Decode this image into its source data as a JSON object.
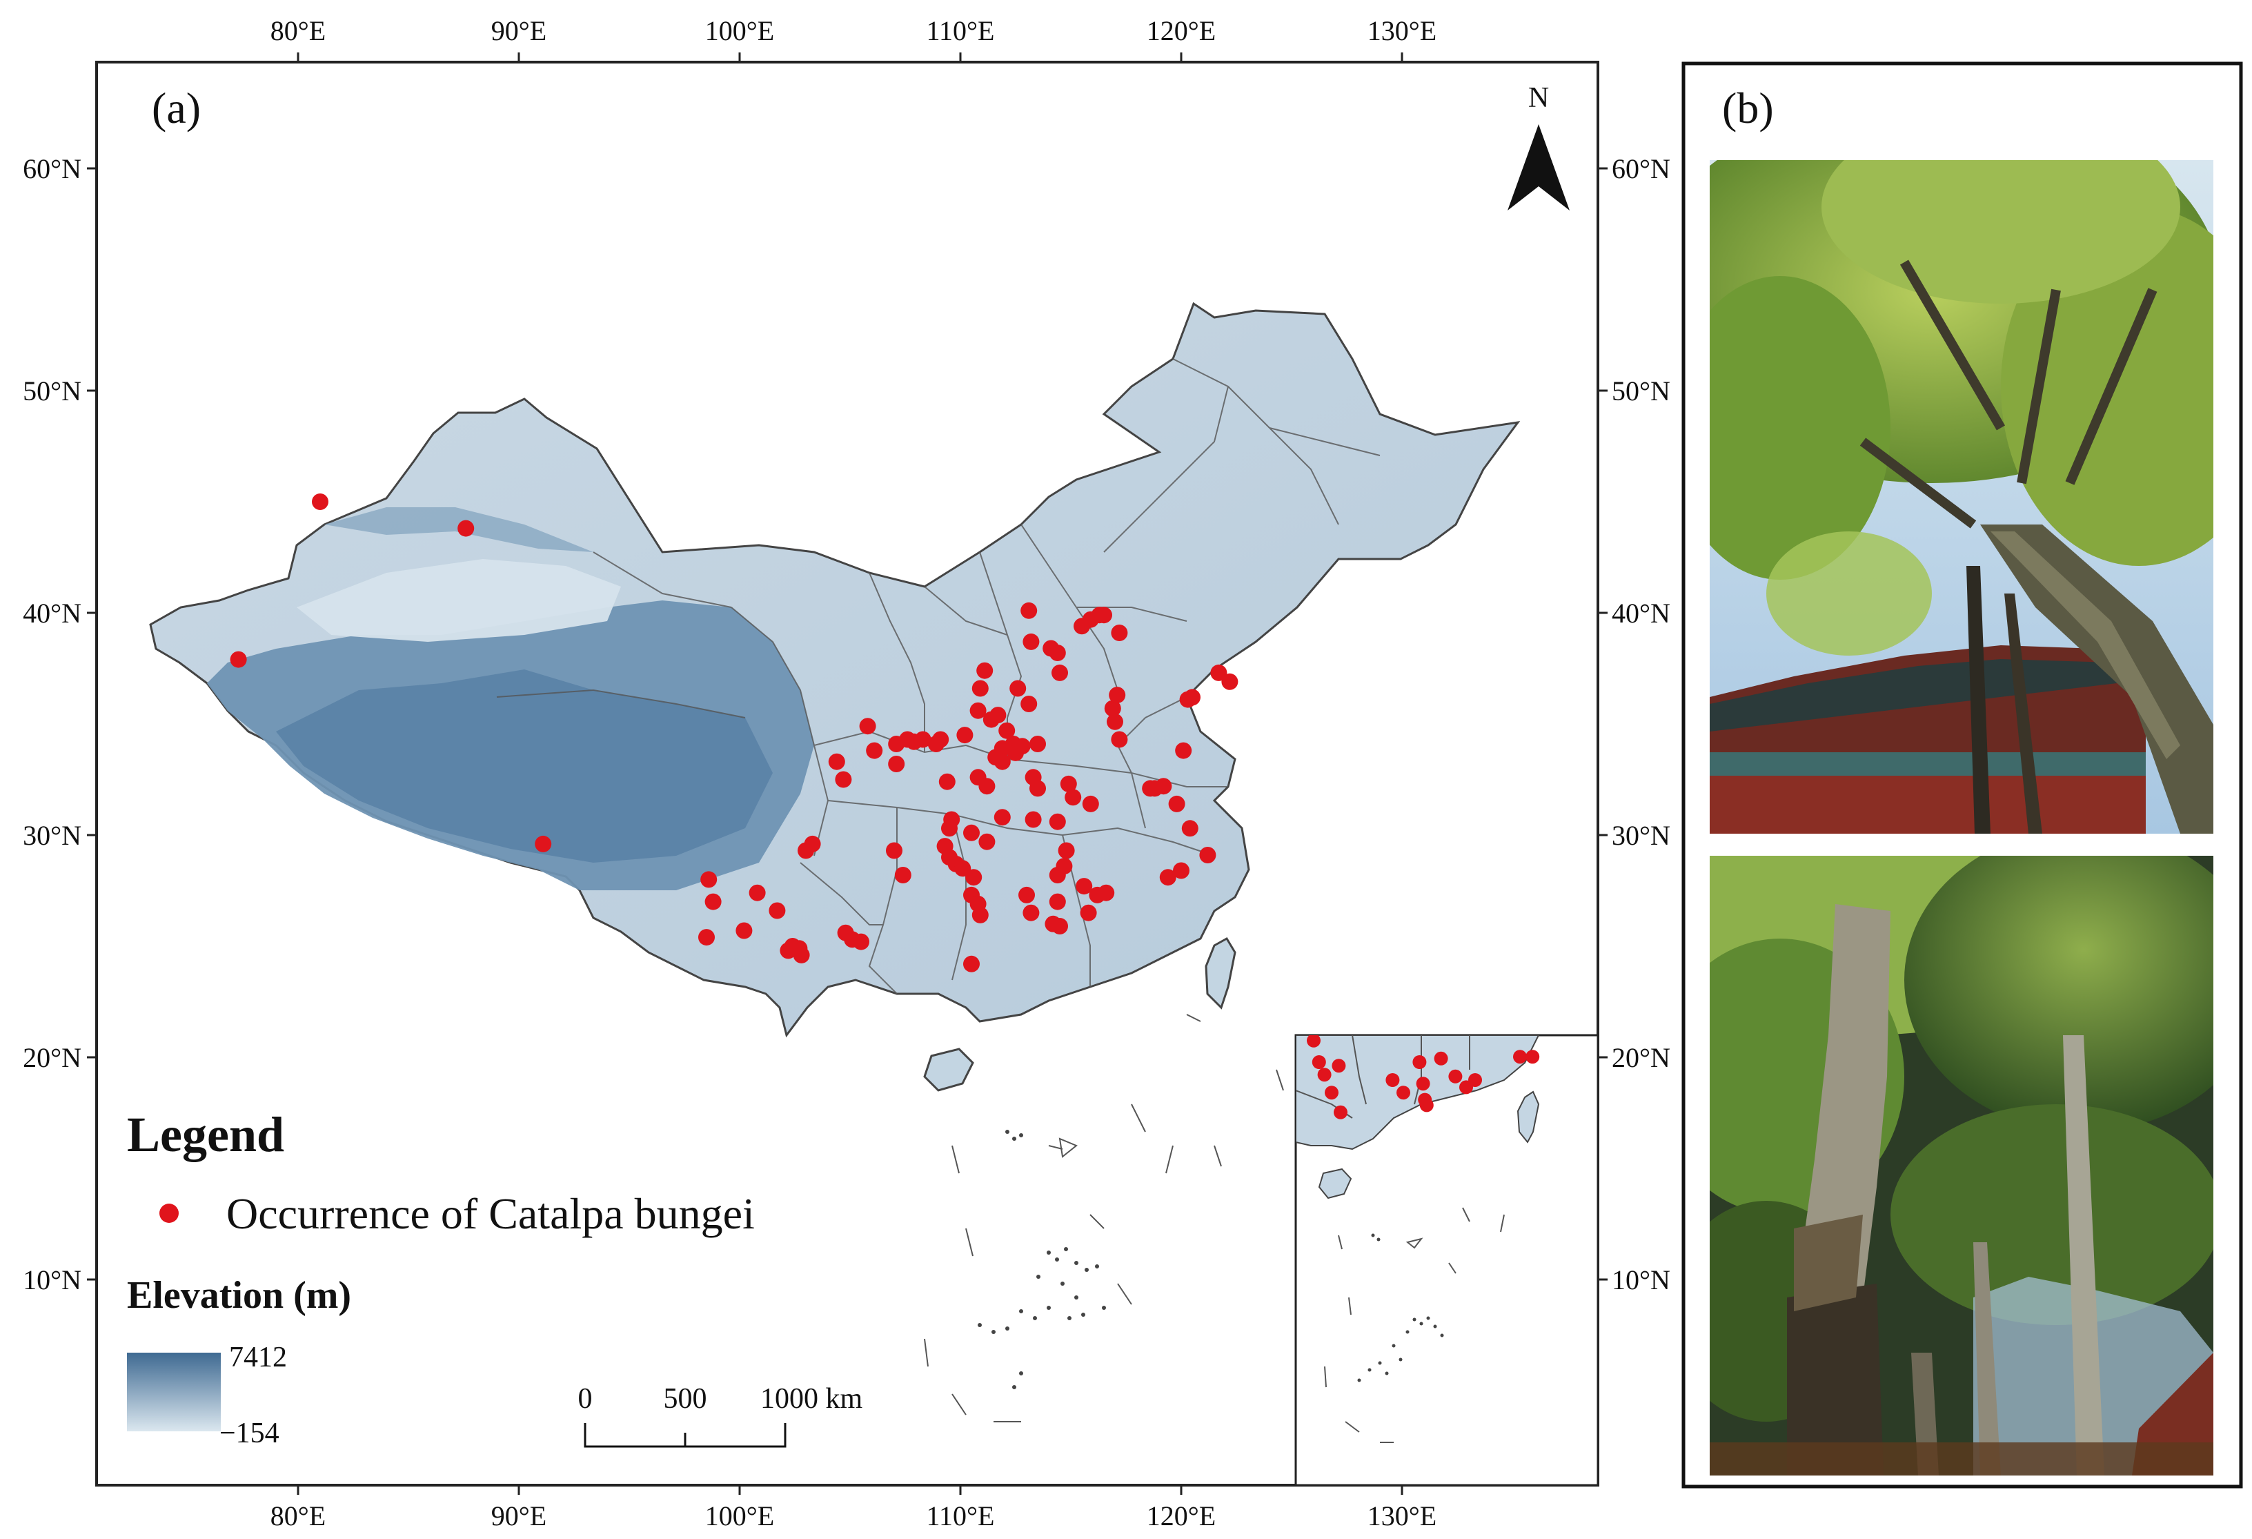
{
  "panel_a": {
    "label": "(a)",
    "north_label": "N",
    "lon_ticks": [
      "80°E",
      "90°E",
      "100°E",
      "110°E",
      "120°E",
      "130°E"
    ],
    "lat_ticks": [
      "60°N",
      "50°N",
      "40°N",
      "30°N",
      "20°N",
      "10°N"
    ],
    "legend": {
      "title": "Legend",
      "occurrence_label": "Occurrence of Catalpa bungei",
      "occurrence_color": "#e0141c",
      "elevation_title": "Elevation (m)",
      "elevation_max": "7412",
      "elevation_min": "−154",
      "ramp_high_color": "#3f6a92",
      "ramp_low_color": "#dbe7ef"
    },
    "scale_bar": {
      "labels": [
        "0",
        "500",
        "1000 km"
      ]
    },
    "occurrences": [
      {
        "lon": 81.0,
        "lat": 45.0
      },
      {
        "lon": 87.6,
        "lat": 43.8
      },
      {
        "lon": 77.3,
        "lat": 37.9
      },
      {
        "lon": 91.1,
        "lat": 29.6
      },
      {
        "lon": 113.1,
        "lat": 40.1
      },
      {
        "lon": 113.2,
        "lat": 38.7
      },
      {
        "lon": 114.1,
        "lat": 38.4
      },
      {
        "lon": 114.4,
        "lat": 38.2
      },
      {
        "lon": 115.5,
        "lat": 39.4
      },
      {
        "lon": 115.9,
        "lat": 39.7
      },
      {
        "lon": 116.3,
        "lat": 39.9
      },
      {
        "lon": 116.5,
        "lat": 39.9
      },
      {
        "lon": 117.2,
        "lat": 39.1
      },
      {
        "lon": 114.5,
        "lat": 37.3
      },
      {
        "lon": 111.1,
        "lat": 37.4
      },
      {
        "lon": 110.9,
        "lat": 36.6
      },
      {
        "lon": 112.6,
        "lat": 36.6
      },
      {
        "lon": 113.1,
        "lat": 35.9
      },
      {
        "lon": 110.8,
        "lat": 35.6
      },
      {
        "lon": 111.4,
        "lat": 35.2
      },
      {
        "lon": 111.7,
        "lat": 35.4
      },
      {
        "lon": 112.1,
        "lat": 34.7
      },
      {
        "lon": 112.4,
        "lat": 34.1
      },
      {
        "lon": 111.9,
        "lat": 33.9
      },
      {
        "lon": 112.5,
        "lat": 33.7
      },
      {
        "lon": 111.6,
        "lat": 33.5
      },
      {
        "lon": 111.9,
        "lat": 33.3
      },
      {
        "lon": 112.8,
        "lat": 34.0
      },
      {
        "lon": 113.5,
        "lat": 34.1
      },
      {
        "lon": 110.2,
        "lat": 34.5
      },
      {
        "lon": 109.1,
        "lat": 34.3
      },
      {
        "lon": 108.9,
        "lat": 34.1
      },
      {
        "lon": 108.3,
        "lat": 34.3
      },
      {
        "lon": 107.9,
        "lat": 34.2
      },
      {
        "lon": 107.1,
        "lat": 34.1
      },
      {
        "lon": 107.6,
        "lat": 34.3
      },
      {
        "lon": 105.8,
        "lat": 34.9
      },
      {
        "lon": 106.1,
        "lat": 33.8
      },
      {
        "lon": 104.4,
        "lat": 33.3
      },
      {
        "lon": 104.7,
        "lat": 32.5
      },
      {
        "lon": 107.1,
        "lat": 33.2
      },
      {
        "lon": 109.4,
        "lat": 32.4
      },
      {
        "lon": 110.8,
        "lat": 32.6
      },
      {
        "lon": 111.2,
        "lat": 32.2
      },
      {
        "lon": 113.3,
        "lat": 32.6
      },
      {
        "lon": 113.5,
        "lat": 32.1
      },
      {
        "lon": 114.9,
        "lat": 32.3
      },
      {
        "lon": 115.1,
        "lat": 31.7
      },
      {
        "lon": 115.9,
        "lat": 31.4
      },
      {
        "lon": 116.9,
        "lat": 35.7
      },
      {
        "lon": 117.1,
        "lat": 36.3
      },
      {
        "lon": 117.0,
        "lat": 35.1
      },
      {
        "lon": 117.2,
        "lat": 34.3
      },
      {
        "lon": 118.6,
        "lat": 32.1
      },
      {
        "lon": 118.8,
        "lat": 32.1
      },
      {
        "lon": 119.2,
        "lat": 32.2
      },
      {
        "lon": 120.1,
        "lat": 33.8
      },
      {
        "lon": 119.8,
        "lat": 31.4
      },
      {
        "lon": 120.4,
        "lat": 30.3
      },
      {
        "lon": 121.2,
        "lat": 29.1
      },
      {
        "lon": 120.0,
        "lat": 28.4
      },
      {
        "lon": 119.4,
        "lat": 28.1
      },
      {
        "lon": 120.3,
        "lat": 36.1
      },
      {
        "lon": 120.5,
        "lat": 36.2
      },
      {
        "lon": 121.7,
        "lat": 37.3
      },
      {
        "lon": 122.2,
        "lat": 36.9
      },
      {
        "lon": 114.4,
        "lat": 30.6
      },
      {
        "lon": 113.3,
        "lat": 30.7
      },
      {
        "lon": 111.9,
        "lat": 30.8
      },
      {
        "lon": 111.2,
        "lat": 29.7
      },
      {
        "lon": 110.5,
        "lat": 30.1
      },
      {
        "lon": 109.5,
        "lat": 30.3
      },
      {
        "lon": 109.6,
        "lat": 30.7
      },
      {
        "lon": 109.3,
        "lat": 29.5
      },
      {
        "lon": 109.5,
        "lat": 29.0
      },
      {
        "lon": 109.8,
        "lat": 28.7
      },
      {
        "lon": 110.1,
        "lat": 28.5
      },
      {
        "lon": 110.6,
        "lat": 28.1
      },
      {
        "lon": 110.5,
        "lat": 27.3
      },
      {
        "lon": 110.8,
        "lat": 26.9
      },
      {
        "lon": 110.9,
        "lat": 26.4
      },
      {
        "lon": 113.0,
        "lat": 27.3
      },
      {
        "lon": 113.2,
        "lat": 26.5
      },
      {
        "lon": 114.4,
        "lat": 28.2
      },
      {
        "lon": 114.7,
        "lat": 28.6
      },
      {
        "lon": 114.8,
        "lat": 29.3
      },
      {
        "lon": 115.6,
        "lat": 27.7
      },
      {
        "lon": 116.2,
        "lat": 27.3
      },
      {
        "lon": 116.6,
        "lat": 27.4
      },
      {
        "lon": 114.4,
        "lat": 27.0
      },
      {
        "lon": 114.2,
        "lat": 26.0
      },
      {
        "lon": 114.5,
        "lat": 25.9
      },
      {
        "lon": 115.8,
        "lat": 26.5
      },
      {
        "lon": 110.5,
        "lat": 24.2
      },
      {
        "lon": 107.4,
        "lat": 28.2
      },
      {
        "lon": 107.0,
        "lat": 29.3
      },
      {
        "lon": 103.3,
        "lat": 29.6
      },
      {
        "lon": 103.0,
        "lat": 29.3
      },
      {
        "lon": 98.6,
        "lat": 28.0
      },
      {
        "lon": 98.8,
        "lat": 27.0
      },
      {
        "lon": 98.5,
        "lat": 25.4
      },
      {
        "lon": 100.2,
        "lat": 25.7
      },
      {
        "lon": 100.8,
        "lat": 27.4
      },
      {
        "lon": 101.7,
        "lat": 26.6
      },
      {
        "lon": 102.2,
        "lat": 24.8
      },
      {
        "lon": 102.4,
        "lat": 25.0
      },
      {
        "lon": 102.7,
        "lat": 24.9
      },
      {
        "lon": 102.8,
        "lat": 24.6
      },
      {
        "lon": 104.8,
        "lat": 25.6
      },
      {
        "lon": 105.1,
        "lat": 25.3
      },
      {
        "lon": 105.5,
        "lat": 25.2
      }
    ]
  },
  "inset": {
    "occurrences": [
      {
        "lon": 110.0,
        "lat": 22.2
      },
      {
        "lon": 110.3,
        "lat": 21.0
      },
      {
        "lon": 110.6,
        "lat": 20.3
      },
      {
        "lon": 111.0,
        "lat": 19.3
      },
      {
        "lon": 111.4,
        "lat": 20.8
      },
      {
        "lon": 111.5,
        "lat": 18.2
      },
      {
        "lon": 114.4,
        "lat": 20.0
      },
      {
        "lon": 115.0,
        "lat": 19.3
      },
      {
        "lon": 115.9,
        "lat": 21.0
      },
      {
        "lon": 116.1,
        "lat": 19.8
      },
      {
        "lon": 116.2,
        "lat": 18.9
      },
      {
        "lon": 116.3,
        "lat": 18.6
      },
      {
        "lon": 117.1,
        "lat": 21.2
      },
      {
        "lon": 117.9,
        "lat": 20.2
      },
      {
        "lon": 118.5,
        "lat": 19.6
      },
      {
        "lon": 119.0,
        "lat": 20.0
      },
      {
        "lon": 121.5,
        "lat": 21.3
      },
      {
        "lon": 122.2,
        "lat": 21.3
      }
    ]
  },
  "panel_b": {
    "label": "(b)"
  }
}
